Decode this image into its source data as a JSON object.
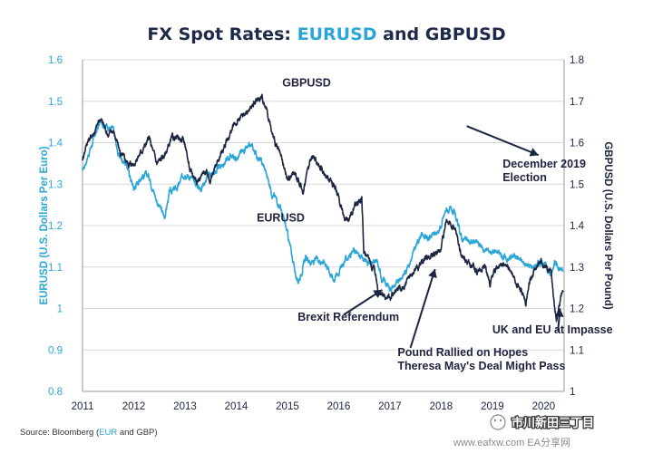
{
  "chart_data": {
    "type": "line",
    "title_parts": [
      {
        "text": "FX Spot Rates: ",
        "color": "#1f2a4a"
      },
      {
        "text": "EURUSD",
        "color": "#2ba6d6"
      },
      {
        "text": " and GBPUSD",
        "color": "#1f2a4a"
      }
    ],
    "colors": {
      "eurusd": "#2ba6d6",
      "gbpusd": "#1c2541",
      "title_dark": "#1f2a4a",
      "annotation": "#1f2340",
      "grid": "#d9d9d9"
    },
    "x_ticks": [
      "2011",
      "2012",
      "2013",
      "2014",
      "2015",
      "2016",
      "2017",
      "2018",
      "2019",
      "2020"
    ],
    "xlim": [
      2011,
      2020.4
    ],
    "y_left": {
      "label": "EURUSD (U.S. Dollars Per Euro)",
      "ticks": [
        "0.8",
        "0.9",
        "1",
        "1.1",
        "1.2",
        "1.3",
        "1.4",
        "1.5",
        "1.6"
      ],
      "lim": [
        0.8,
        1.6
      ]
    },
    "y_right": {
      "label": "GBPUSD (U.S. Dollars Per Pound)",
      "ticks": [
        "1",
        "1.1",
        "1.2",
        "1.3",
        "1.4",
        "1.5",
        "1.6",
        "1.7",
        "1.8"
      ],
      "lim": [
        1.0,
        1.8
      ]
    },
    "grid": "horizontal",
    "series": [
      {
        "name": "EURUSD",
        "axis": "left",
        "points": [
          [
            2011.0,
            1.33
          ],
          [
            2011.08,
            1.36
          ],
          [
            2011.25,
            1.42
          ],
          [
            2011.35,
            1.45
          ],
          [
            2011.5,
            1.44
          ],
          [
            2011.6,
            1.43
          ],
          [
            2011.7,
            1.37
          ],
          [
            2011.85,
            1.35
          ],
          [
            2012.0,
            1.29
          ],
          [
            2012.15,
            1.32
          ],
          [
            2012.3,
            1.32
          ],
          [
            2012.45,
            1.26
          ],
          [
            2012.6,
            1.22
          ],
          [
            2012.7,
            1.28
          ],
          [
            2012.85,
            1.29
          ],
          [
            2013.0,
            1.33
          ],
          [
            2013.15,
            1.31
          ],
          [
            2013.3,
            1.29
          ],
          [
            2013.45,
            1.32
          ],
          [
            2013.6,
            1.33
          ],
          [
            2013.75,
            1.35
          ],
          [
            2013.9,
            1.37
          ],
          [
            2014.0,
            1.36
          ],
          [
            2014.15,
            1.38
          ],
          [
            2014.3,
            1.39
          ],
          [
            2014.45,
            1.36
          ],
          [
            2014.55,
            1.34
          ],
          [
            2014.7,
            1.28
          ],
          [
            2014.85,
            1.25
          ],
          [
            2015.0,
            1.18
          ],
          [
            2015.1,
            1.12
          ],
          [
            2015.2,
            1.06
          ],
          [
            2015.35,
            1.12
          ],
          [
            2015.5,
            1.11
          ],
          [
            2015.6,
            1.12
          ],
          [
            2015.75,
            1.11
          ],
          [
            2015.9,
            1.07
          ],
          [
            2016.0,
            1.09
          ],
          [
            2016.15,
            1.12
          ],
          [
            2016.3,
            1.14
          ],
          [
            2016.45,
            1.12
          ],
          [
            2016.6,
            1.11
          ],
          [
            2016.75,
            1.11
          ],
          [
            2016.85,
            1.07
          ],
          [
            2017.0,
            1.05
          ],
          [
            2017.15,
            1.06
          ],
          [
            2017.3,
            1.09
          ],
          [
            2017.45,
            1.13
          ],
          [
            2017.6,
            1.18
          ],
          [
            2017.75,
            1.17
          ],
          [
            2017.9,
            1.18
          ],
          [
            2018.0,
            1.2
          ],
          [
            2018.1,
            1.24
          ],
          [
            2018.25,
            1.23
          ],
          [
            2018.4,
            1.17
          ],
          [
            2018.55,
            1.16
          ],
          [
            2018.7,
            1.16
          ],
          [
            2018.85,
            1.14
          ],
          [
            2019.0,
            1.14
          ],
          [
            2019.15,
            1.13
          ],
          [
            2019.3,
            1.12
          ],
          [
            2019.45,
            1.13
          ],
          [
            2019.6,
            1.11
          ],
          [
            2019.75,
            1.1
          ],
          [
            2019.9,
            1.11
          ],
          [
            2020.0,
            1.11
          ],
          [
            2020.1,
            1.09
          ],
          [
            2020.15,
            1.08
          ],
          [
            2020.22,
            1.12
          ],
          [
            2020.3,
            1.09
          ],
          [
            2020.38,
            1.09
          ]
        ]
      },
      {
        "name": "GBPUSD",
        "axis": "right",
        "points": [
          [
            2011.0,
            1.56
          ],
          [
            2011.08,
            1.6
          ],
          [
            2011.25,
            1.63
          ],
          [
            2011.35,
            1.66
          ],
          [
            2011.5,
            1.62
          ],
          [
            2011.6,
            1.63
          ],
          [
            2011.75,
            1.57
          ],
          [
            2011.9,
            1.55
          ],
          [
            2012.0,
            1.55
          ],
          [
            2012.15,
            1.58
          ],
          [
            2012.3,
            1.61
          ],
          [
            2012.45,
            1.55
          ],
          [
            2012.6,
            1.57
          ],
          [
            2012.75,
            1.61
          ],
          [
            2012.9,
            1.61
          ],
          [
            2013.0,
            1.6
          ],
          [
            2013.1,
            1.53
          ],
          [
            2013.25,
            1.51
          ],
          [
            2013.4,
            1.53
          ],
          [
            2013.5,
            1.51
          ],
          [
            2013.65,
            1.56
          ],
          [
            2013.8,
            1.6
          ],
          [
            2013.95,
            1.64
          ],
          [
            2014.1,
            1.66
          ],
          [
            2014.25,
            1.68
          ],
          [
            2014.4,
            1.7
          ],
          [
            2014.5,
            1.71
          ],
          [
            2014.6,
            1.68
          ],
          [
            2014.7,
            1.62
          ],
          [
            2014.85,
            1.57
          ],
          [
            2015.0,
            1.51
          ],
          [
            2015.15,
            1.53
          ],
          [
            2015.3,
            1.48
          ],
          [
            2015.4,
            1.54
          ],
          [
            2015.5,
            1.57
          ],
          [
            2015.6,
            1.55
          ],
          [
            2015.75,
            1.52
          ],
          [
            2015.9,
            1.5
          ],
          [
            2016.0,
            1.47
          ],
          [
            2016.1,
            1.42
          ],
          [
            2016.2,
            1.42
          ],
          [
            2016.35,
            1.45
          ],
          [
            2016.45,
            1.47
          ],
          [
            2016.49,
            1.34
          ],
          [
            2016.55,
            1.32
          ],
          [
            2016.7,
            1.3
          ],
          [
            2016.78,
            1.24
          ],
          [
            2016.85,
            1.24
          ],
          [
            2016.95,
            1.22
          ],
          [
            2017.1,
            1.24
          ],
          [
            2017.25,
            1.25
          ],
          [
            2017.4,
            1.28
          ],
          [
            2017.55,
            1.3
          ],
          [
            2017.7,
            1.32
          ],
          [
            2017.85,
            1.33
          ],
          [
            2018.0,
            1.35
          ],
          [
            2018.1,
            1.41
          ],
          [
            2018.25,
            1.4
          ],
          [
            2018.4,
            1.33
          ],
          [
            2018.55,
            1.31
          ],
          [
            2018.7,
            1.29
          ],
          [
            2018.85,
            1.3
          ],
          [
            2018.95,
            1.26
          ],
          [
            2019.05,
            1.29
          ],
          [
            2019.2,
            1.31
          ],
          [
            2019.35,
            1.29
          ],
          [
            2019.5,
            1.26
          ],
          [
            2019.6,
            1.23
          ],
          [
            2019.65,
            1.21
          ],
          [
            2019.75,
            1.27
          ],
          [
            2019.85,
            1.3
          ],
          [
            2019.95,
            1.31
          ],
          [
            2020.05,
            1.3
          ],
          [
            2020.15,
            1.29
          ],
          [
            2020.2,
            1.22
          ],
          [
            2020.25,
            1.17
          ],
          [
            2020.3,
            1.21
          ],
          [
            2020.38,
            1.24
          ]
        ]
      }
    ],
    "annotations": [
      {
        "lines": [
          "GBPUSD"
        ],
        "x": 2014.9,
        "y_left": 1.535
      },
      {
        "lines": [
          "EURUSD"
        ],
        "x": 2014.4,
        "y_left": 1.21,
        "color": "#2ba6d6"
      },
      {
        "lines": [
          "December 2019",
          "Election"
        ],
        "x": 2019.2,
        "y_left": 1.34
      },
      {
        "lines": [
          "Brexit Referendum"
        ],
        "x": 2015.2,
        "y_left": 0.97
      },
      {
        "lines": [
          "Pound Rallied on Hopes",
          "Theresa May's Deal Might Pass"
        ],
        "x": 2017.15,
        "y_left": 0.885
      },
      {
        "lines": [
          "UK and EU at Impasse"
        ],
        "x": 2019.0,
        "y_left": 0.94
      }
    ],
    "arrows": [
      {
        "from": [
          2016.1,
          0.985
        ],
        "to": [
          2016.85,
          1.045
        ]
      },
      {
        "from": [
          2018.5,
          1.44
        ],
        "to": [
          2019.9,
          1.37
        ]
      },
      {
        "from": [
          2017.4,
          0.905
        ],
        "to": [
          2017.88,
          1.095
        ]
      },
      {
        "from": [
          2020.28,
          0.945
        ],
        "to": [
          2020.32,
          1.0
        ]
      }
    ],
    "source_parts": [
      {
        "text": "Source: Bloomberg (",
        "color": "#333333"
      },
      {
        "text": "EUR",
        "color": "#2ba6d6"
      },
      {
        "text": " and GBP)",
        "color": "#333333"
      }
    ]
  },
  "watermark": {
    "name": "市川新田三丁目",
    "url": "www.eafxw.com  EA分享网"
  }
}
